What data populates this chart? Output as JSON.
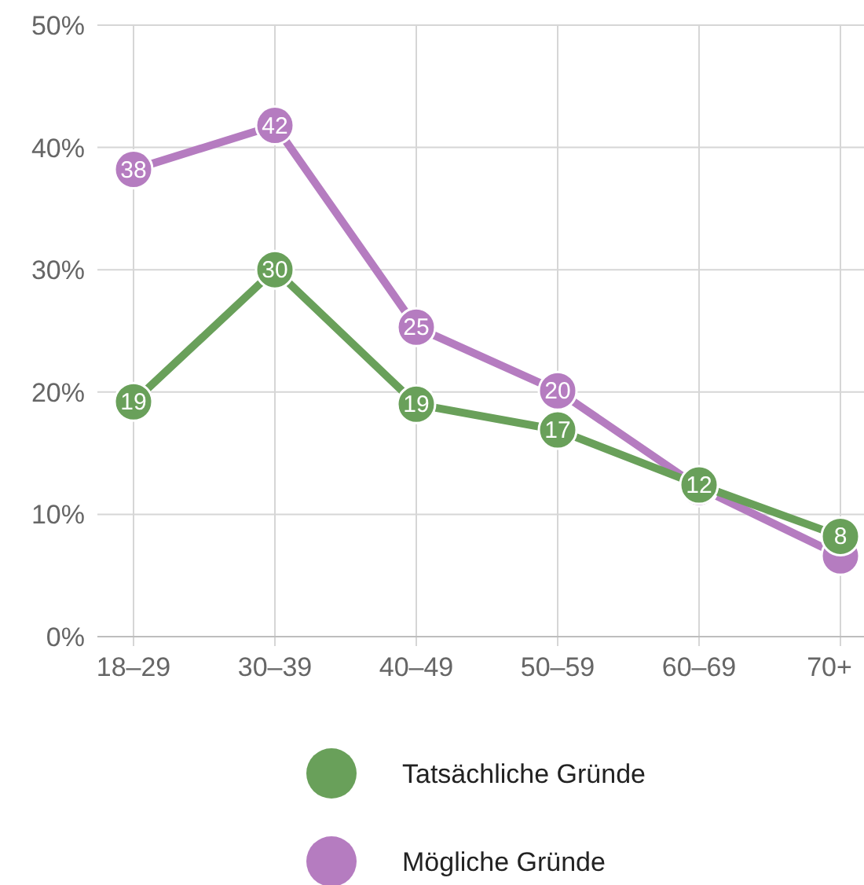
{
  "chart_data": {
    "type": "line",
    "categories": [
      "18–29",
      "30–39",
      "40–49",
      "50–59",
      "60–69",
      "70+"
    ],
    "series": [
      {
        "name": "Mögliche Gründe",
        "color": "#b57cc0",
        "values": [
          38.2,
          41.8,
          25.3,
          20.1,
          12.2,
          6.6
        ],
        "value_labels": [
          "38",
          "42",
          "25",
          "20",
          null,
          null
        ]
      },
      {
        "name": "Tatsächliche Gründe",
        "color": "#69a05a",
        "values": [
          19.2,
          30,
          19,
          16.9,
          12.4,
          8.2
        ],
        "value_labels": [
          "19",
          "30",
          "19",
          "17",
          "12",
          "8"
        ]
      }
    ],
    "ylim": [
      0,
      50
    ],
    "yticks": [
      {
        "value": 0,
        "label": "0%"
      },
      {
        "value": 10,
        "label": "10%"
      },
      {
        "value": 20,
        "label": "20%"
      },
      {
        "value": 30,
        "label": "30%"
      },
      {
        "value": 40,
        "label": "40%"
      },
      {
        "value": 50,
        "label": "50%"
      }
    ],
    "grid": true,
    "legend": "bottom",
    "marker": "circle",
    "line_style": "solid"
  }
}
